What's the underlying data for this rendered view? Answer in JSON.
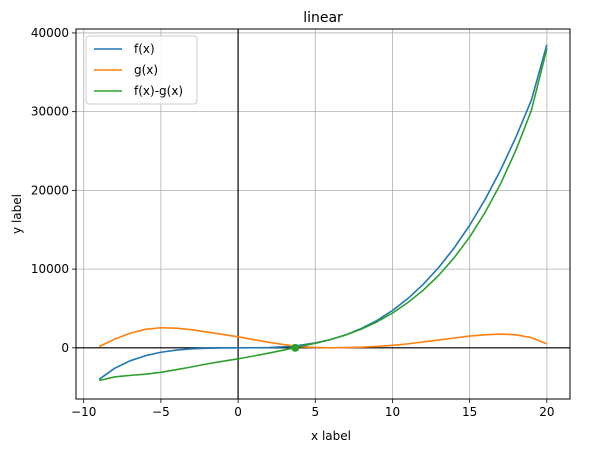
{
  "chart_data": {
    "type": "line",
    "title": "linear",
    "xlabel": "x label",
    "ylabel": "y label",
    "xlim": [
      -10.5,
      21.5
    ],
    "ylim": [
      -6500,
      40500
    ],
    "x_ticks": [
      -10,
      -5,
      0,
      5,
      10,
      15,
      20
    ],
    "y_ticks": [
      0,
      10000,
      20000,
      30000,
      40000
    ],
    "grid": true,
    "legend_position": "upper-left",
    "reference_lines": {
      "x": 0,
      "y": 0
    },
    "series": [
      {
        "name": "f(x)",
        "color": "#1f77b4",
        "x": [
          -9,
          -8,
          -7,
          -6,
          -5,
          -4,
          -3,
          -2,
          -1,
          0,
          1,
          2,
          3,
          4,
          5,
          6,
          7,
          8,
          9,
          10,
          11,
          12,
          13,
          14,
          15,
          16,
          17,
          18,
          19,
          20
        ],
        "y": [
          -4000,
          -2600,
          -1650,
          -1000,
          -560,
          -280,
          -120,
          -40,
          -10,
          0,
          10,
          40,
          130,
          320,
          620,
          1060,
          1670,
          2470,
          3480,
          4740,
          6260,
          8080,
          10220,
          12700,
          15570,
          18850,
          22570,
          26770,
          31470,
          38500
        ]
      },
      {
        "name": "g(x)",
        "color": "#ff7f0e",
        "x": [
          -9,
          -8,
          -7,
          -6,
          -5,
          -4,
          -3,
          -2,
          -1,
          0,
          1,
          2,
          3,
          4,
          5,
          6,
          7,
          8,
          9,
          10,
          11,
          12,
          13,
          14,
          15,
          16,
          17,
          18,
          19,
          20
        ],
        "y": [
          150,
          1100,
          1850,
          2350,
          2550,
          2500,
          2300,
          2000,
          1700,
          1400,
          1050,
          700,
          400,
          150,
          50,
          0,
          30,
          80,
          180,
          320,
          500,
          750,
          1000,
          1250,
          1500,
          1650,
          1750,
          1650,
          1300,
          500
        ]
      },
      {
        "name": "f(x)-g(x)",
        "color": "#2ca02c",
        "x": [
          -9,
          -8,
          -7,
          -6,
          -5,
          -4,
          -3,
          -2,
          -1,
          0,
          1,
          2,
          3,
          4,
          5,
          6,
          7,
          8,
          9,
          10,
          11,
          12,
          13,
          14,
          15,
          16,
          17,
          18,
          19,
          20
        ],
        "y": [
          -4150,
          -3700,
          -3500,
          -3350,
          -3110,
          -2780,
          -2420,
          -2040,
          -1710,
          -1400,
          -1040,
          -660,
          -270,
          170,
          570,
          1060,
          1640,
          2390,
          3300,
          4420,
          5760,
          7330,
          9220,
          11450,
          14070,
          17200,
          20820,
          25120,
          30170,
          38000
        ]
      }
    ],
    "markers": [
      {
        "x": 3.7,
        "y": 0,
        "color": "#2ca02c"
      }
    ]
  }
}
